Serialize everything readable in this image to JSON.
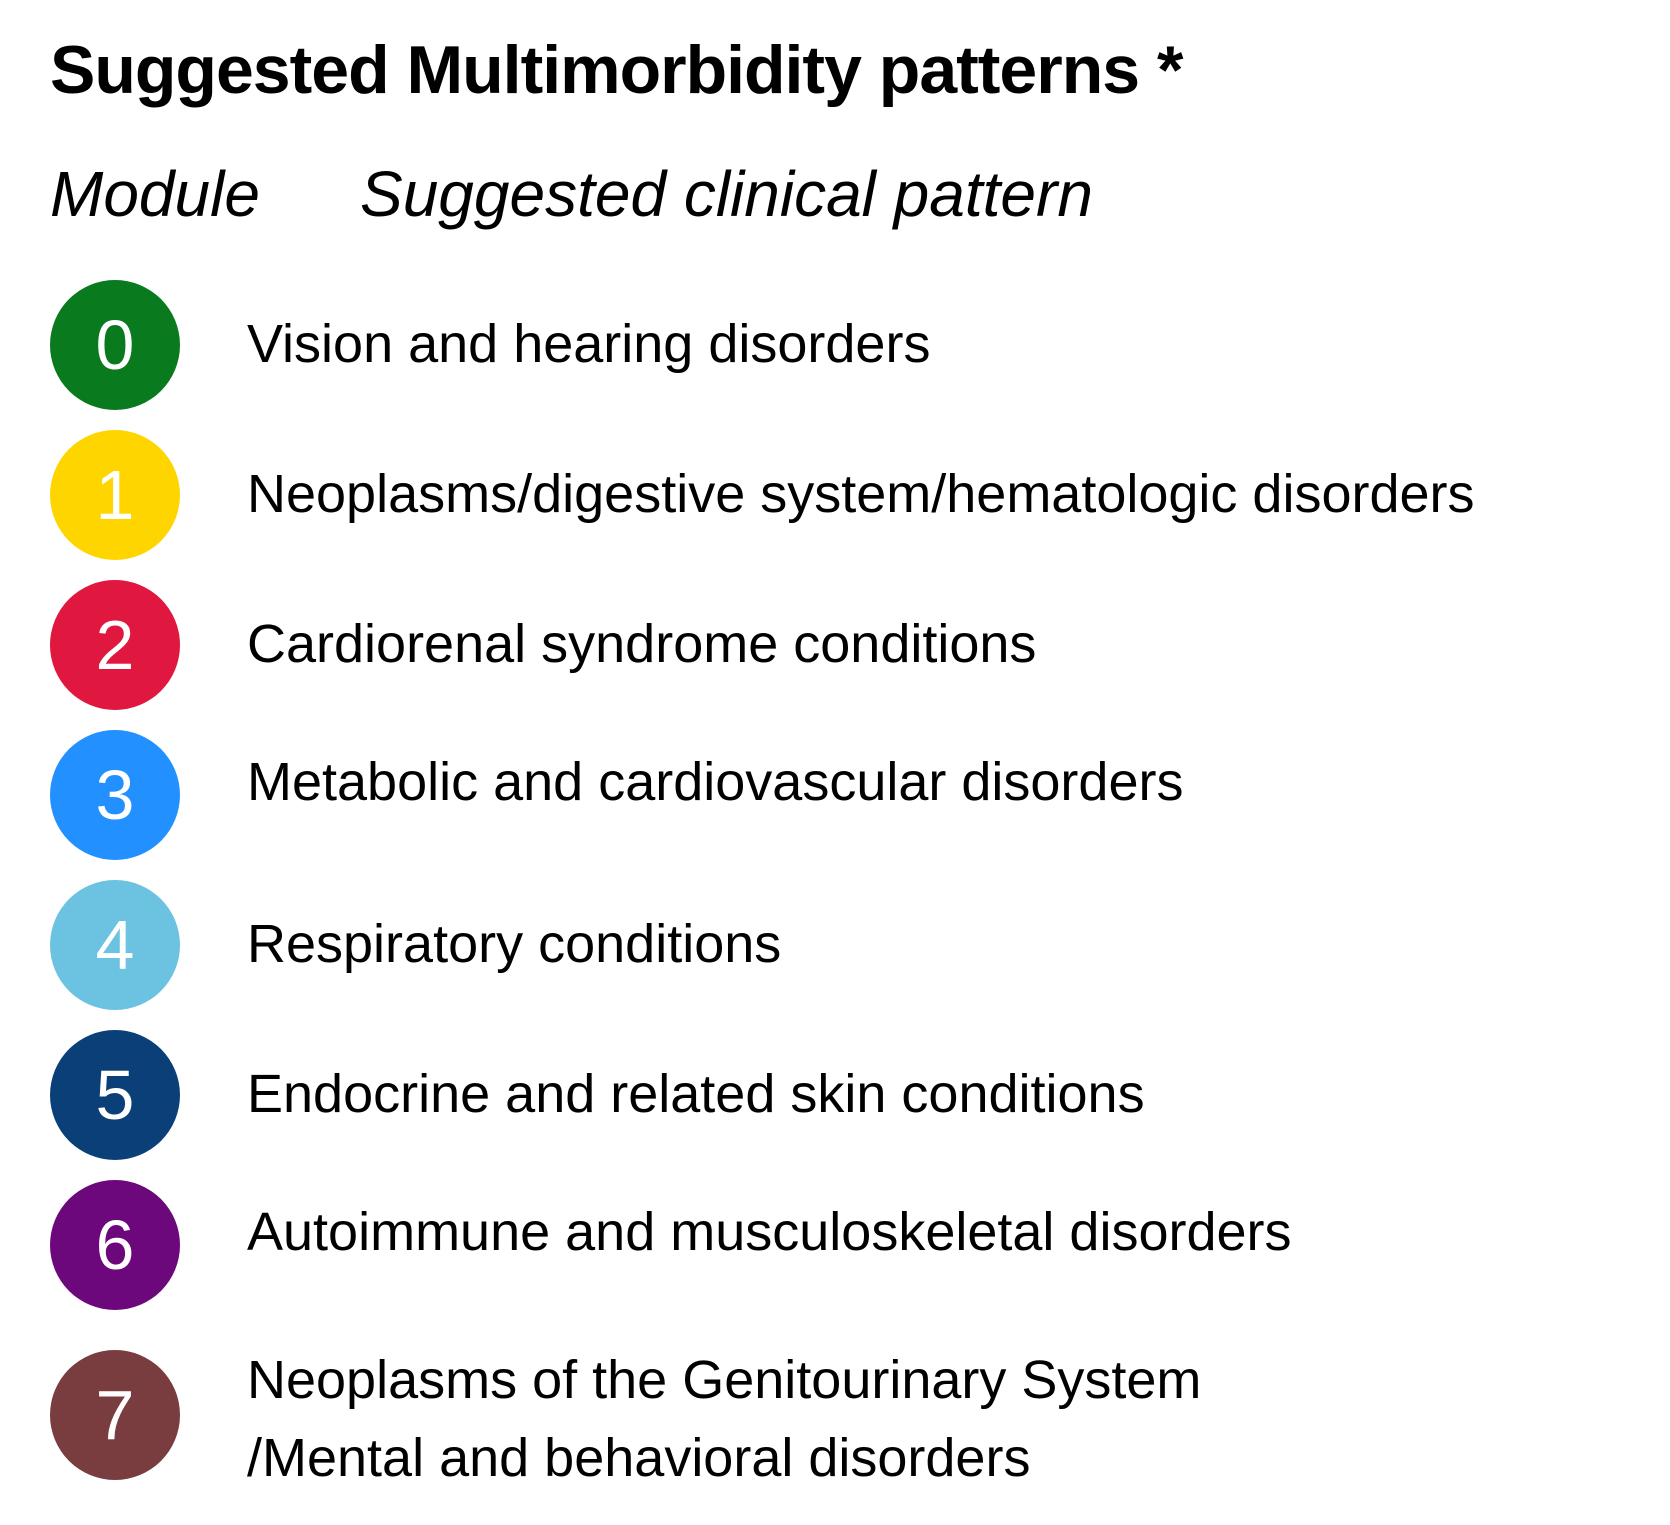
{
  "title": "Suggested Multimorbidity patterns *",
  "headers": {
    "module": "Module",
    "pattern": "Suggested clinical pattern"
  },
  "modules": [
    {
      "number": "0",
      "label": "Vision and hearing disorders",
      "color": "#0a7a1e"
    },
    {
      "number": "1",
      "label": "Neoplasms/digestive system/hematologic disorders",
      "color": "#ffd500"
    },
    {
      "number": "2",
      "label": "Cardiorenal syndrome conditions",
      "color": "#e0173f"
    },
    {
      "number": "3",
      "label": "Metabolic and cardiovascular disorders",
      "color": "#2291ff"
    },
    {
      "number": "4",
      "label": "Respiratory conditions",
      "color": "#6bc3e1"
    },
    {
      "number": "5",
      "label": "Endocrine and related skin conditions",
      "color": "#0b3f77"
    },
    {
      "number": "6",
      "label": "Autoimmune and musculoskeletal disorders",
      "color": "#6c087b"
    },
    {
      "number": "7",
      "label_line1": "Neoplasms of the Genitourinary System",
      "label_line2": "/Mental and behavioral disorders",
      "color": "#7a3d3f"
    }
  ]
}
